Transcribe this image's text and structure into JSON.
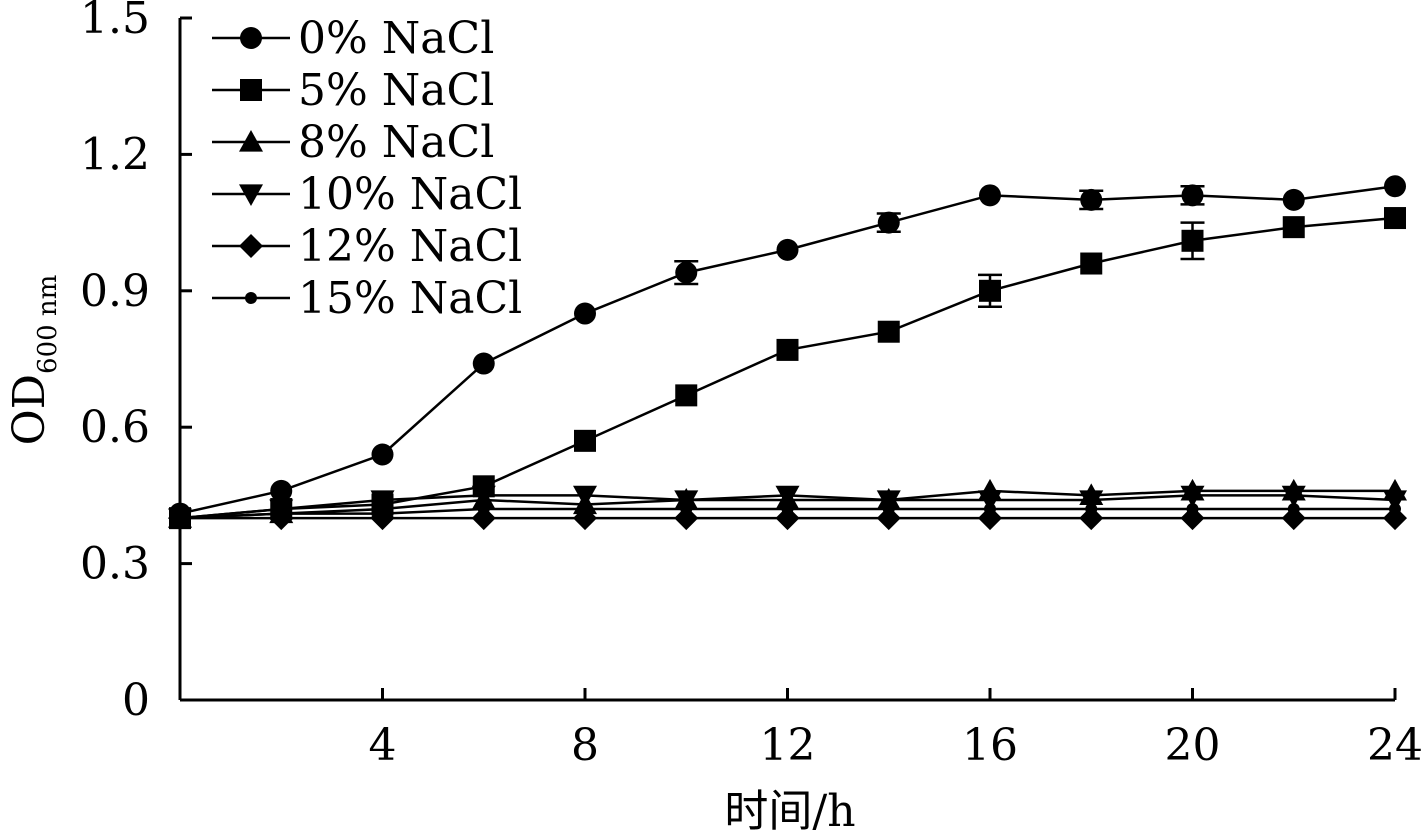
{
  "chart_data": {
    "type": "line",
    "xlabel": "时间/h",
    "ylabel": "OD",
    "ylabel_subscript": "600 nm",
    "xlim": [
      0,
      24
    ],
    "ylim": [
      0,
      1.5
    ],
    "xticks": [
      4,
      8,
      12,
      16,
      20,
      24
    ],
    "xtick_labels": [
      "4",
      "8",
      "12",
      "16",
      "20",
      "24"
    ],
    "yticks": [
      0,
      0.3,
      0.6,
      0.9,
      1.2,
      1.5
    ],
    "ytick_labels": [
      "0",
      "0.3",
      "0.6",
      "0.9",
      "1.2",
      "1.5"
    ],
    "grid": false,
    "legend_position": "top-left",
    "x": [
      0,
      2,
      4,
      6,
      8,
      10,
      12,
      14,
      16,
      18,
      20,
      22,
      24
    ],
    "series": [
      {
        "name": "0% NaCl",
        "marker": "circle",
        "values": [
          0.41,
          0.46,
          0.54,
          0.74,
          0.85,
          0.94,
          0.99,
          1.05,
          1.11,
          1.1,
          1.11,
          1.1,
          1.13
        ],
        "errors": [
          0,
          0,
          0,
          0,
          0,
          0.025,
          0,
          0.02,
          0,
          0.02,
          0.02,
          0,
          0
        ]
      },
      {
        "name": "5% NaCl",
        "marker": "square",
        "values": [
          0.4,
          0.42,
          0.43,
          0.47,
          0.57,
          0.67,
          0.77,
          0.81,
          0.9,
          0.96,
          1.01,
          1.04,
          1.06
        ],
        "errors": [
          0,
          0,
          0,
          0,
          0,
          0,
          0,
          0,
          0.035,
          0,
          0.04,
          0,
          0
        ]
      },
      {
        "name": "8% NaCl",
        "marker": "triangle-up",
        "values": [
          0.4,
          0.41,
          0.42,
          0.44,
          0.43,
          0.44,
          0.44,
          0.44,
          0.46,
          0.45,
          0.46,
          0.46,
          0.46
        ],
        "errors": [
          0,
          0,
          0,
          0,
          0,
          0,
          0,
          0,
          0,
          0,
          0,
          0,
          0
        ]
      },
      {
        "name": "10% NaCl",
        "marker": "triangle-down",
        "values": [
          0.4,
          0.42,
          0.44,
          0.45,
          0.45,
          0.44,
          0.45,
          0.44,
          0.44,
          0.44,
          0.45,
          0.45,
          0.44
        ],
        "errors": [
          0,
          0,
          0,
          0,
          0,
          0,
          0,
          0,
          0,
          0,
          0,
          0,
          0
        ]
      },
      {
        "name": "12% NaCl",
        "marker": "diamond",
        "values": [
          0.4,
          0.4,
          0.4,
          0.4,
          0.4,
          0.4,
          0.4,
          0.4,
          0.4,
          0.4,
          0.4,
          0.4,
          0.4
        ],
        "errors": [
          0,
          0,
          0,
          0,
          0,
          0,
          0,
          0,
          0,
          0,
          0,
          0,
          0
        ]
      },
      {
        "name": "15% NaCl",
        "marker": "dot",
        "values": [
          0.4,
          0.41,
          0.41,
          0.42,
          0.42,
          0.42,
          0.42,
          0.42,
          0.42,
          0.42,
          0.42,
          0.42,
          0.42
        ],
        "errors": [
          0,
          0,
          0,
          0,
          0,
          0,
          0,
          0,
          0,
          0,
          0,
          0,
          0
        ]
      }
    ]
  }
}
